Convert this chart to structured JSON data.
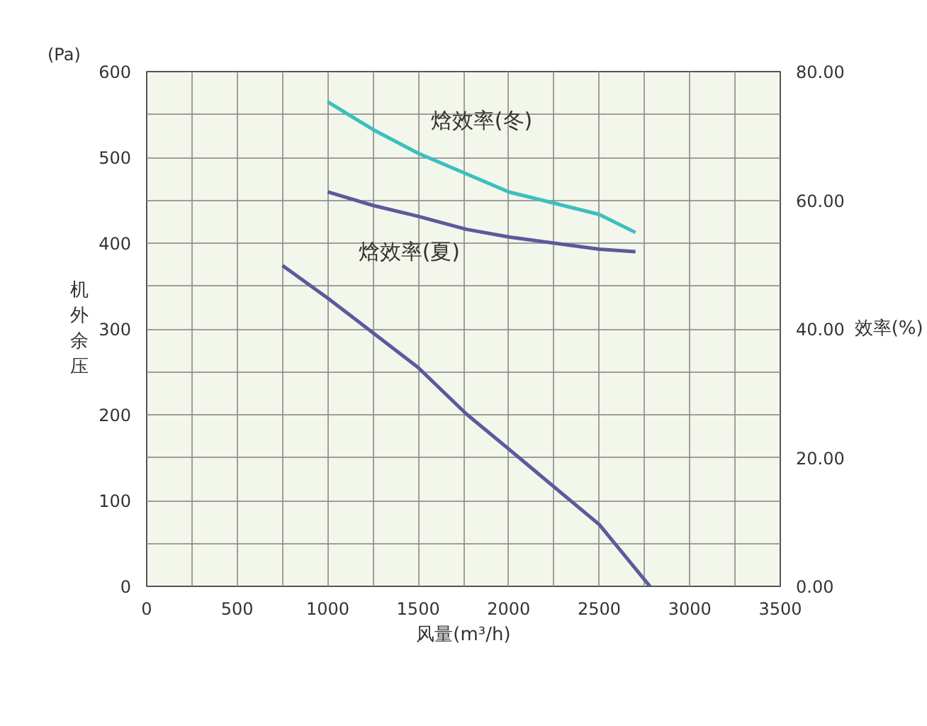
{
  "chart_data": {
    "type": "line",
    "xlabel": "风量(m³/h)",
    "ylabel": "机外余压",
    "y2label": "效率(%)",
    "annotations": [
      "(Pa)"
    ],
    "xlim": [
      0,
      3500
    ],
    "ylim": [
      0,
      600
    ],
    "y2lim": [
      0,
      80
    ],
    "xticks": [
      0,
      {
        "value": 250,
        "label": null
      },
      500,
      {
        "value": 750,
        "label": null
      },
      1000,
      {
        "value": 1250,
        "label": null
      },
      1500,
      {
        "value": 1750,
        "label": null
      },
      2000,
      {
        "value": 2250,
        "label": null
      },
      2500,
      {
        "value": 2750,
        "label": null
      },
      3000,
      {
        "value": 3250,
        "label": null
      },
      3500
    ],
    "yticks": [
      0,
      {
        "value": 50,
        "label": null
      },
      100,
      {
        "value": 150,
        "label": null
      },
      200,
      {
        "value": 250,
        "label": null
      },
      300,
      {
        "value": 350,
        "label": null
      },
      400,
      {
        "value": 450,
        "label": null
      },
      500,
      {
        "value": 550,
        "label": null
      },
      600
    ],
    "y2ticks": [
      {
        "value": 0,
        "label": "0.00"
      },
      {
        "value": 20,
        "label": "20.00"
      },
      {
        "value": 40,
        "label": "40.00"
      },
      {
        "value": 60,
        "label": "60.00"
      },
      {
        "value": 80,
        "label": "80.00"
      }
    ],
    "grid": true,
    "marker": "none",
    "line_style": "solid",
    "series": [
      {
        "name": "焓效率(冬)",
        "color": "#3bbfbf",
        "axis": "y2",
        "x": [
          1000,
          1250,
          1500,
          2000,
          2500,
          2700
        ],
        "values": [
          75.3,
          71,
          67.3,
          61.3,
          57.8,
          55
        ]
      },
      {
        "name": "焓效率(夏)",
        "color": "#5b5a9c",
        "axis": "y2",
        "x": [
          1000,
          1250,
          1500,
          1765,
          2000,
          2500,
          2700
        ],
        "values": [
          61.3,
          59.2,
          57.5,
          55.5,
          54.3,
          52.4,
          52
        ]
      },
      {
        "color": "#5b5a9c",
        "x": [
          750,
          1000,
          1500,
          1765,
          2000,
          2500,
          2780
        ],
        "values": [
          374,
          336,
          255,
          201,
          160,
          72,
          0
        ]
      }
    ]
  }
}
